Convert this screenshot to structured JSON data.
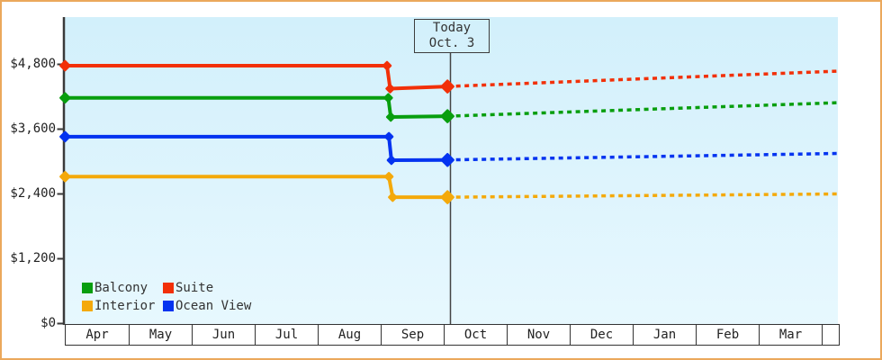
{
  "window": {
    "frame_color": "#eba85c",
    "background": "#ffffff"
  },
  "today_box": {
    "line1": "Today",
    "line2": "Oct. 3"
  },
  "legend": {
    "items": [
      {
        "label": "Balcony",
        "color": "#089e0e"
      },
      {
        "label": "Suite",
        "color": "#f23008"
      },
      {
        "label": "Interior",
        "color": "#f4a90a"
      },
      {
        "label": "Ocean View",
        "color": "#0433f0"
      }
    ]
  },
  "chart_data": {
    "type": "line",
    "title": "",
    "xlabel": "",
    "ylabel": "",
    "categories": [
      "Apr",
      "May",
      "Jun",
      "Jul",
      "Aug",
      "Sep",
      "Oct",
      "Nov",
      "Dec",
      "Jan",
      "Feb",
      "Mar"
    ],
    "y_tick_labels": [
      "$4,800",
      "$3,600",
      "$2,400",
      "$1,200",
      "$0"
    ],
    "y_ticks": [
      4800,
      3600,
      2400,
      1200,
      0
    ],
    "ylim": [
      0,
      5680
    ],
    "grid": false,
    "legend_position": "bottom-left-inside",
    "plot_background": {
      "top": "#d2f0fb",
      "mid": "#def4fd",
      "bottom": "#e7f8fe"
    },
    "today": {
      "label": "Today",
      "date": "Oct. 3",
      "month_position": 6.1
    },
    "forecast_style": "dashed",
    "series": [
      {
        "name": "Suite",
        "color": "#f23008",
        "history": [
          {
            "m": -0.01,
            "price": 4775
          },
          {
            "m": 5.1,
            "price": 4775
          },
          {
            "m": 5.15,
            "price": 4350
          },
          {
            "m": 6.06,
            "price": 4390
          }
        ],
        "forecast_end": {
          "m": 12.26,
          "price": 4675
        }
      },
      {
        "name": "Balcony",
        "color": "#089e0e",
        "history": [
          {
            "m": -0.01,
            "price": 4180
          },
          {
            "m": 5.12,
            "price": 4180
          },
          {
            "m": 5.16,
            "price": 3825
          },
          {
            "m": 6.06,
            "price": 3840
          }
        ],
        "forecast_end": {
          "m": 12.26,
          "price": 4090
        }
      },
      {
        "name": "Ocean View",
        "color": "#0433f0",
        "history": [
          {
            "m": -0.01,
            "price": 3460
          },
          {
            "m": 5.13,
            "price": 3460
          },
          {
            "m": 5.17,
            "price": 3025
          },
          {
            "m": 6.06,
            "price": 3030
          }
        ],
        "forecast_end": {
          "m": 12.26,
          "price": 3150
        }
      },
      {
        "name": "Interior",
        "color": "#f4a90a",
        "history": [
          {
            "m": -0.01,
            "price": 2720
          },
          {
            "m": 5.13,
            "price": 2720
          },
          {
            "m": 5.19,
            "price": 2340
          },
          {
            "m": 6.06,
            "price": 2340
          }
        ],
        "forecast_end": {
          "m": 12.26,
          "price": 2400
        }
      }
    ]
  }
}
